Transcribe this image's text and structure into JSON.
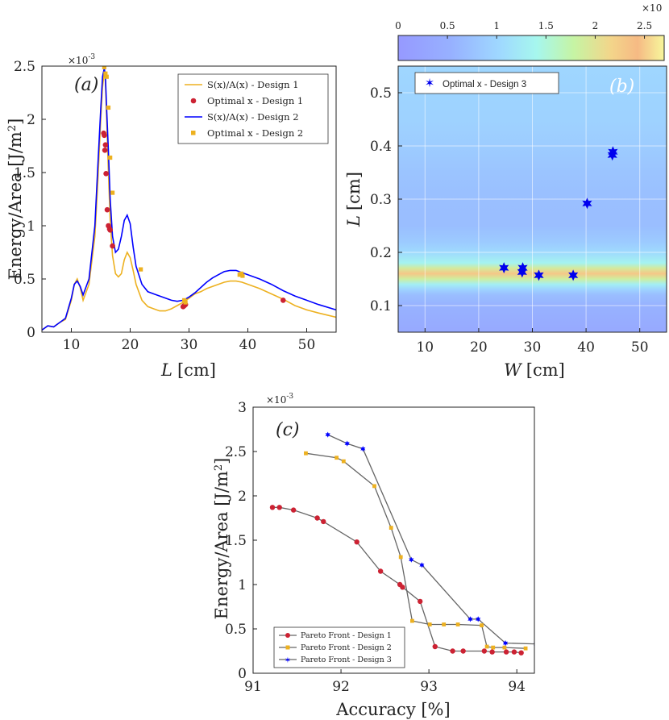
{
  "chart_data": [
    {
      "id": "a",
      "type": "line",
      "panel_label": "(a)",
      "xlabel_var": "L",
      "xlabel_unit": "[cm]",
      "ylabel": "Energy/Area [J/m",
      "ylabel_sup": "2",
      "ylabel_close": "]",
      "exponent": "×10",
      "exponent_power": "-3",
      "xlim": [
        5,
        55
      ],
      "ylim": [
        0,
        2.5
      ],
      "xticks": [
        "10",
        "20",
        "30",
        "40",
        "50"
      ],
      "yticks": [
        "0",
        "0.5",
        "1",
        "1.5",
        "2",
        "2.5"
      ],
      "legend": [
        "S(x)/A(x) - Design 1",
        "Optimal x - Design 1",
        "S(x)/A(x) - Design 2",
        "Optimal x - Design 2"
      ],
      "series": [
        {
          "name": "S(x)/A(x) - Design 1",
          "color": "#EDB120",
          "x": [
            5,
            6,
            7,
            8,
            9,
            10,
            10.5,
            11,
            11.5,
            12,
            13,
            14,
            14.5,
            15,
            15.3,
            15.6,
            15.8,
            16,
            16.3,
            16.6,
            17,
            17.5,
            18,
            18.5,
            19,
            19.5,
            20,
            20.5,
            21,
            22,
            23,
            24,
            25,
            26,
            27,
            28,
            29,
            30,
            31,
            32,
            33,
            34,
            35,
            36,
            37,
            38,
            39,
            40,
            42,
            44,
            46,
            48,
            50,
            52,
            55
          ],
          "y": [
            0.02,
            0.06,
            0.05,
            0.09,
            0.12,
            0.3,
            0.45,
            0.5,
            0.42,
            0.3,
            0.45,
            0.9,
            1.4,
            2.0,
            2.3,
            2.45,
            2.35,
            2.0,
            1.5,
            1.05,
            0.72,
            0.55,
            0.52,
            0.55,
            0.68,
            0.75,
            0.7,
            0.58,
            0.45,
            0.3,
            0.24,
            0.22,
            0.2,
            0.2,
            0.22,
            0.25,
            0.28,
            0.32,
            0.36,
            0.38,
            0.41,
            0.43,
            0.45,
            0.47,
            0.48,
            0.48,
            0.47,
            0.45,
            0.41,
            0.36,
            0.31,
            0.25,
            0.21,
            0.18,
            0.14
          ]
        },
        {
          "name": "S(x)/A(x) - Design 2",
          "color": "#0000FF",
          "x": [
            5,
            6,
            7,
            8,
            9,
            10,
            10.5,
            11,
            11.5,
            12,
            13,
            14,
            14.5,
            15,
            15.3,
            15.6,
            15.8,
            16,
            16.3,
            16.6,
            17,
            17.5,
            18,
            18.5,
            19,
            19.5,
            20,
            20.5,
            21,
            22,
            23,
            24,
            25,
            26,
            27,
            28,
            29,
            30,
            31,
            32,
            33,
            34,
            35,
            36,
            37,
            38,
            39,
            40,
            42,
            44,
            46,
            48,
            50,
            52,
            55
          ],
          "y": [
            0.02,
            0.06,
            0.05,
            0.09,
            0.13,
            0.32,
            0.45,
            0.48,
            0.43,
            0.35,
            0.5,
            1.0,
            1.55,
            2.1,
            2.4,
            2.48,
            2.4,
            2.1,
            1.7,
            1.25,
            0.9,
            0.75,
            0.78,
            0.9,
            1.05,
            1.1,
            1.02,
            0.8,
            0.62,
            0.45,
            0.38,
            0.36,
            0.34,
            0.32,
            0.3,
            0.29,
            0.3,
            0.33,
            0.37,
            0.42,
            0.47,
            0.51,
            0.54,
            0.57,
            0.58,
            0.58,
            0.56,
            0.54,
            0.5,
            0.45,
            0.39,
            0.34,
            0.3,
            0.26,
            0.21
          ]
        }
      ],
      "markers": [
        {
          "name": "Optimal x - Design 1",
          "color": "#CC2233",
          "x": [
            15.5,
            15.6,
            15.8,
            15.7,
            15.9,
            16.1,
            16.3,
            16.5,
            16.6,
            17.0,
            29.0,
            29.2,
            29.4,
            46.0
          ],
          "y": [
            1.87,
            1.85,
            1.76,
            1.71,
            1.49,
            1.15,
            1.0,
            0.97,
            0.96,
            0.81,
            0.24,
            0.25,
            0.26,
            0.3
          ]
        },
        {
          "name": "Optimal x - Design 2",
          "color": "#EDB120",
          "x": [
            15.6,
            15.8,
            16.0,
            16.3,
            16.6,
            17.0,
            21.8,
            29.2,
            29.4,
            38.6,
            38.9,
            39.1
          ],
          "y": [
            2.49,
            2.43,
            2.4,
            2.11,
            1.64,
            1.31,
            0.59,
            0.3,
            0.28,
            0.54,
            0.55,
            0.53
          ]
        }
      ]
    },
    {
      "id": "b",
      "type": "heatmap",
      "panel_label": "(b)",
      "xlabel_var": "W",
      "xlabel_unit": "[cm]",
      "ylabel_var": "L",
      "ylabel_unit": "[cm]",
      "xlim": [
        5,
        55
      ],
      "ylim": [
        0.05,
        0.55
      ],
      "xticks": [
        "10",
        "20",
        "30",
        "40",
        "50"
      ],
      "yticks": [
        "0.1",
        "0.2",
        "0.3",
        "0.4",
        "0.5"
      ],
      "colorbar_ticks": [
        "0",
        "0.5",
        "1",
        "1.5",
        "2",
        "2.5"
      ],
      "colorbar_exponent": "×10",
      "colorbar_range": [
        0,
        2.7
      ],
      "legend": [
        "Optimal x - Design 3"
      ],
      "heat_profile": {
        "L": [
          0.05,
          0.1,
          0.12,
          0.13,
          0.14,
          0.15,
          0.16,
          0.17,
          0.18,
          0.19,
          0.2,
          0.22,
          0.25,
          0.3,
          0.35,
          0.4,
          0.45,
          0.5,
          0.55
        ],
        "value": [
          0.35,
          0.55,
          0.7,
          0.95,
          1.3,
          1.85,
          2.3,
          1.9,
          1.35,
          1.2,
          1.05,
          0.85,
          0.7,
          0.72,
          0.78,
          0.88,
          0.95,
          0.98,
          1.0
        ]
      },
      "markers": [
        {
          "name": "Optimal x - Design 3",
          "color": "#0000EE",
          "x": [
            24.7,
            28.2,
            28.1,
            31.2,
            37.6,
            40.2,
            44.9,
            45.0
          ],
          "y": [
            0.171,
            0.171,
            0.163,
            0.157,
            0.157,
            0.292,
            0.383,
            0.389
          ]
        }
      ]
    },
    {
      "id": "c",
      "type": "line",
      "panel_label": "(c)",
      "xlabel": "Accuracy [%]",
      "ylabel": "Energy/Area [J/m",
      "ylabel_sup": "2",
      "ylabel_close": "]",
      "exponent": "×10",
      "exponent_power": "-3",
      "xlim": [
        91,
        94.2
      ],
      "ylim": [
        0,
        3
      ],
      "xticks": [
        "91",
        "92",
        "93",
        "94"
      ],
      "yticks": [
        "0",
        "0.5",
        "1",
        "1.5",
        "2",
        "2.5",
        "3"
      ],
      "legend": [
        "Pareto Front - Design 1",
        "Pareto Front - Design 2",
        "Pareto Front - Design 3"
      ],
      "line_color": "#666666",
      "series": [
        {
          "name": "Pareto Front - Design 1",
          "color": "#CC2233",
          "x": [
            91.22,
            91.3,
            91.46,
            91.73,
            91.8,
            92.18,
            92.45,
            92.67,
            92.7,
            92.9,
            93.07,
            93.27,
            93.39,
            93.63,
            93.72,
            93.88,
            93.97,
            94.05
          ],
          "y": [
            1.87,
            1.87,
            1.84,
            1.75,
            1.71,
            1.48,
            1.15,
            1.0,
            0.97,
            0.81,
            0.3,
            0.25,
            0.25,
            0.25,
            0.24,
            0.24,
            0.24,
            0.23
          ]
        },
        {
          "name": "Pareto Front - Design 2",
          "color": "#EDB120",
          "x": [
            91.6,
            91.95,
            92.03,
            92.38,
            92.57,
            92.68,
            92.81,
            93.01,
            93.17,
            93.33,
            93.6,
            93.66,
            93.73,
            93.86,
            94.1
          ],
          "y": [
            2.48,
            2.43,
            2.39,
            2.11,
            1.64,
            1.31,
            0.59,
            0.55,
            0.55,
            0.55,
            0.54,
            0.3,
            0.29,
            0.29,
            0.28
          ]
        },
        {
          "name": "Pareto Front - Design 3",
          "color": "#0000FF",
          "x": [
            91.85,
            92.07,
            92.25,
            92.8,
            92.92,
            93.47,
            93.56,
            93.87,
            94.22
          ],
          "y": [
            2.69,
            2.59,
            2.53,
            1.28,
            1.22,
            0.61,
            0.61,
            0.34,
            0.33
          ]
        }
      ]
    }
  ]
}
